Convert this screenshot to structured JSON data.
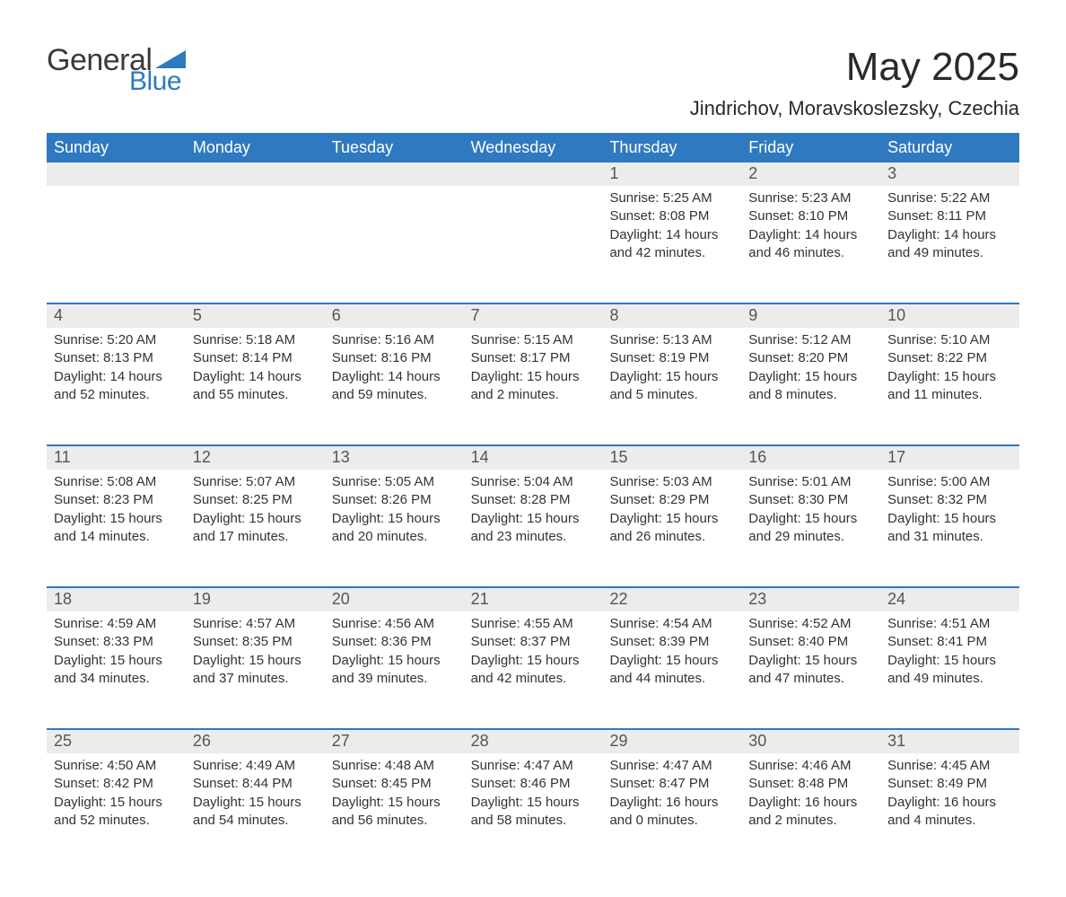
{
  "brand": {
    "text1": "General",
    "text2": "Blue",
    "accent_color": "#2f79c0",
    "text_color": "#3a3a3a"
  },
  "title": "May 2025",
  "location": "Jindrichov, Moravskoslezsky, Czechia",
  "colors": {
    "header_bg": "#2f79c0",
    "header_text": "#ffffff",
    "day_strip_bg": "#ececec",
    "day_strip_text": "#555555",
    "body_text": "#333333",
    "rule": "#2f79c0",
    "page_bg": "#ffffff"
  },
  "typography": {
    "title_size_pt": 33,
    "location_size_pt": 17,
    "dow_size_pt": 14,
    "daynum_size_pt": 14,
    "body_size_pt": 11
  },
  "days_of_week": [
    "Sunday",
    "Monday",
    "Tuesday",
    "Wednesday",
    "Thursday",
    "Friday",
    "Saturday"
  ],
  "weeks": [
    [
      {
        "n": "",
        "sunrise": "",
        "sunset": "",
        "daylight": ""
      },
      {
        "n": "",
        "sunrise": "",
        "sunset": "",
        "daylight": ""
      },
      {
        "n": "",
        "sunrise": "",
        "sunset": "",
        "daylight": ""
      },
      {
        "n": "",
        "sunrise": "",
        "sunset": "",
        "daylight": ""
      },
      {
        "n": "1",
        "sunrise": "Sunrise: 5:25 AM",
        "sunset": "Sunset: 8:08 PM",
        "daylight": "Daylight: 14 hours and 42 minutes."
      },
      {
        "n": "2",
        "sunrise": "Sunrise: 5:23 AM",
        "sunset": "Sunset: 8:10 PM",
        "daylight": "Daylight: 14 hours and 46 minutes."
      },
      {
        "n": "3",
        "sunrise": "Sunrise: 5:22 AM",
        "sunset": "Sunset: 8:11 PM",
        "daylight": "Daylight: 14 hours and 49 minutes."
      }
    ],
    [
      {
        "n": "4",
        "sunrise": "Sunrise: 5:20 AM",
        "sunset": "Sunset: 8:13 PM",
        "daylight": "Daylight: 14 hours and 52 minutes."
      },
      {
        "n": "5",
        "sunrise": "Sunrise: 5:18 AM",
        "sunset": "Sunset: 8:14 PM",
        "daylight": "Daylight: 14 hours and 55 minutes."
      },
      {
        "n": "6",
        "sunrise": "Sunrise: 5:16 AM",
        "sunset": "Sunset: 8:16 PM",
        "daylight": "Daylight: 14 hours and 59 minutes."
      },
      {
        "n": "7",
        "sunrise": "Sunrise: 5:15 AM",
        "sunset": "Sunset: 8:17 PM",
        "daylight": "Daylight: 15 hours and 2 minutes."
      },
      {
        "n": "8",
        "sunrise": "Sunrise: 5:13 AM",
        "sunset": "Sunset: 8:19 PM",
        "daylight": "Daylight: 15 hours and 5 minutes."
      },
      {
        "n": "9",
        "sunrise": "Sunrise: 5:12 AM",
        "sunset": "Sunset: 8:20 PM",
        "daylight": "Daylight: 15 hours and 8 minutes."
      },
      {
        "n": "10",
        "sunrise": "Sunrise: 5:10 AM",
        "sunset": "Sunset: 8:22 PM",
        "daylight": "Daylight: 15 hours and 11 minutes."
      }
    ],
    [
      {
        "n": "11",
        "sunrise": "Sunrise: 5:08 AM",
        "sunset": "Sunset: 8:23 PM",
        "daylight": "Daylight: 15 hours and 14 minutes."
      },
      {
        "n": "12",
        "sunrise": "Sunrise: 5:07 AM",
        "sunset": "Sunset: 8:25 PM",
        "daylight": "Daylight: 15 hours and 17 minutes."
      },
      {
        "n": "13",
        "sunrise": "Sunrise: 5:05 AM",
        "sunset": "Sunset: 8:26 PM",
        "daylight": "Daylight: 15 hours and 20 minutes."
      },
      {
        "n": "14",
        "sunrise": "Sunrise: 5:04 AM",
        "sunset": "Sunset: 8:28 PM",
        "daylight": "Daylight: 15 hours and 23 minutes."
      },
      {
        "n": "15",
        "sunrise": "Sunrise: 5:03 AM",
        "sunset": "Sunset: 8:29 PM",
        "daylight": "Daylight: 15 hours and 26 minutes."
      },
      {
        "n": "16",
        "sunrise": "Sunrise: 5:01 AM",
        "sunset": "Sunset: 8:30 PM",
        "daylight": "Daylight: 15 hours and 29 minutes."
      },
      {
        "n": "17",
        "sunrise": "Sunrise: 5:00 AM",
        "sunset": "Sunset: 8:32 PM",
        "daylight": "Daylight: 15 hours and 31 minutes."
      }
    ],
    [
      {
        "n": "18",
        "sunrise": "Sunrise: 4:59 AM",
        "sunset": "Sunset: 8:33 PM",
        "daylight": "Daylight: 15 hours and 34 minutes."
      },
      {
        "n": "19",
        "sunrise": "Sunrise: 4:57 AM",
        "sunset": "Sunset: 8:35 PM",
        "daylight": "Daylight: 15 hours and 37 minutes."
      },
      {
        "n": "20",
        "sunrise": "Sunrise: 4:56 AM",
        "sunset": "Sunset: 8:36 PM",
        "daylight": "Daylight: 15 hours and 39 minutes."
      },
      {
        "n": "21",
        "sunrise": "Sunrise: 4:55 AM",
        "sunset": "Sunset: 8:37 PM",
        "daylight": "Daylight: 15 hours and 42 minutes."
      },
      {
        "n": "22",
        "sunrise": "Sunrise: 4:54 AM",
        "sunset": "Sunset: 8:39 PM",
        "daylight": "Daylight: 15 hours and 44 minutes."
      },
      {
        "n": "23",
        "sunrise": "Sunrise: 4:52 AM",
        "sunset": "Sunset: 8:40 PM",
        "daylight": "Daylight: 15 hours and 47 minutes."
      },
      {
        "n": "24",
        "sunrise": "Sunrise: 4:51 AM",
        "sunset": "Sunset: 8:41 PM",
        "daylight": "Daylight: 15 hours and 49 minutes."
      }
    ],
    [
      {
        "n": "25",
        "sunrise": "Sunrise: 4:50 AM",
        "sunset": "Sunset: 8:42 PM",
        "daylight": "Daylight: 15 hours and 52 minutes."
      },
      {
        "n": "26",
        "sunrise": "Sunrise: 4:49 AM",
        "sunset": "Sunset: 8:44 PM",
        "daylight": "Daylight: 15 hours and 54 minutes."
      },
      {
        "n": "27",
        "sunrise": "Sunrise: 4:48 AM",
        "sunset": "Sunset: 8:45 PM",
        "daylight": "Daylight: 15 hours and 56 minutes."
      },
      {
        "n": "28",
        "sunrise": "Sunrise: 4:47 AM",
        "sunset": "Sunset: 8:46 PM",
        "daylight": "Daylight: 15 hours and 58 minutes."
      },
      {
        "n": "29",
        "sunrise": "Sunrise: 4:47 AM",
        "sunset": "Sunset: 8:47 PM",
        "daylight": "Daylight: 16 hours and 0 minutes."
      },
      {
        "n": "30",
        "sunrise": "Sunrise: 4:46 AM",
        "sunset": "Sunset: 8:48 PM",
        "daylight": "Daylight: 16 hours and 2 minutes."
      },
      {
        "n": "31",
        "sunrise": "Sunrise: 4:45 AM",
        "sunset": "Sunset: 8:49 PM",
        "daylight": "Daylight: 16 hours and 4 minutes."
      }
    ]
  ]
}
